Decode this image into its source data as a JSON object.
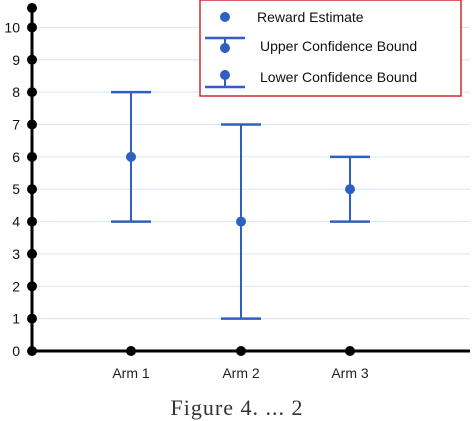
{
  "chart_data": {
    "type": "scatter",
    "categories": [
      "Arm 1",
      "Arm 2",
      "Arm 3"
    ],
    "series": [
      {
        "name": "Reward Estimate",
        "values": [
          6,
          4,
          5
        ]
      },
      {
        "name": "Upper Confidence Bound",
        "values": [
          8,
          7,
          6
        ]
      },
      {
        "name": "Lower Confidence Bound",
        "values": [
          4,
          1,
          4
        ]
      }
    ],
    "yticks": [
      "0",
      "1",
      "2",
      "3",
      "4",
      "5",
      "6",
      "7",
      "8",
      "9",
      "10"
    ],
    "ylim": [
      0,
      10.6
    ],
    "grid": true,
    "legend": "top-right",
    "title": "",
    "xlabel": "",
    "ylabel": "",
    "colors": {
      "series": "#2F5FBF",
      "axis": "#000000",
      "grid": "#D6E6F5",
      "legend_border": "#D9252A"
    }
  },
  "caption": "Figure 4. ... 2"
}
